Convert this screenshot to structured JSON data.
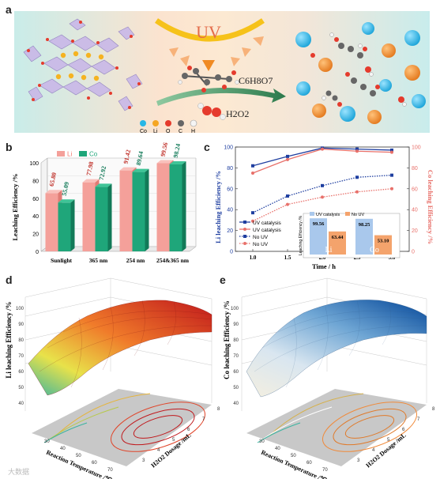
{
  "panels": {
    "a": "a",
    "b": "b",
    "c": "c",
    "d": "d",
    "e": "e"
  },
  "panel_a": {
    "uv_label": "UV",
    "reagent": "C6H8O7",
    "oxidant": "H2O2",
    "legend": [
      "Co",
      "Li",
      "O",
      "C",
      "H"
    ],
    "colors": {
      "Co": "#29b7e6",
      "Li": "#f5a623",
      "O": "#e53b2d",
      "C": "#666666",
      "H": "#eeeeee"
    }
  },
  "chart_data": [
    {
      "type": "bar",
      "panel": "b",
      "categories": [
        "Sunlight",
        "365 nm",
        "254 nm",
        "254&365 nm"
      ],
      "series": [
        {
          "name": "Li",
          "values": [
            65.8,
            77.98,
            91.42,
            99.56
          ],
          "color": "#f4a09a"
        },
        {
          "name": "Co",
          "values": [
            55.09,
            72.92,
            89.64,
            98.24
          ],
          "color": "#1fa67a"
        }
      ],
      "ylabel": "Leaching Efficiency /%",
      "ylim": [
        0,
        100
      ],
      "yticks": [
        "0",
        "20",
        "40",
        "60",
        "80",
        "100"
      ]
    },
    {
      "type": "line",
      "panel": "c",
      "x": [
        1.0,
        1.5,
        2.0,
        2.5,
        3.0
      ],
      "xticks": [
        "1.0",
        "1.5",
        "2.0",
        "2.5",
        "3.0"
      ],
      "xlabel": "Time / h",
      "ylabel_left": "Li leaching Efficiency /%",
      "ylabel_right": "Co leaching Efficiency /%",
      "ylim": [
        0,
        100
      ],
      "yticks": [
        "0",
        "20",
        "40",
        "60",
        "80",
        "100"
      ],
      "series": [
        {
          "name": "UV catalysis",
          "axis": "Li",
          "values": [
            82,
            91,
            99,
            98,
            97
          ],
          "color": "#1f3fa0",
          "style": "solid"
        },
        {
          "name": "UV catalysis",
          "axis": "Co",
          "values": [
            75,
            88,
            98,
            96,
            95
          ],
          "color": "#e8706a",
          "style": "solid"
        },
        {
          "name": "No UV",
          "axis": "Li",
          "values": [
            37,
            53,
            63,
            71,
            73
          ],
          "color": "#1f3fa0",
          "style": "dotted"
        },
        {
          "name": "No UV",
          "axis": "Co",
          "values": [
            29,
            45,
            52,
            57,
            60
          ],
          "color": "#e8706a",
          "style": "dotted"
        }
      ],
      "inset": {
        "legend": [
          "UV catalysis",
          "No UV"
        ],
        "ylabel": "Leaching Efficiency /%",
        "groups": [
          {
            "label": "Li",
            "values": [
              99.56,
              63.44
            ]
          },
          {
            "label": "Co",
            "values": [
              98.25,
              53.1
            ]
          }
        ],
        "colors": [
          "#a9c8ec",
          "#f4a36c"
        ]
      }
    }
  ],
  "panel_d": {
    "zlabel": "Li leaching Efficiency /%",
    "xlabel": "Reaction Temperature /℃",
    "ylabel": "H2O2 Dosage /mL",
    "zticks": [
      "40",
      "50",
      "60",
      "70",
      "80",
      "90",
      "100"
    ],
    "xticks": [
      "30",
      "40",
      "50",
      "60",
      "70"
    ],
    "yticks": [
      "3",
      "4",
      "5",
      "6",
      "7",
      "8"
    ]
  },
  "panel_e": {
    "zlabel": "Co leaching Efficiency /%",
    "xlabel": "Reaction Temperature /℃",
    "ylabel": "H2O2 Dosage /mL",
    "zticks": [
      "40",
      "50",
      "60",
      "70",
      "80",
      "90",
      "100"
    ],
    "xticks": [
      "30",
      "40",
      "50",
      "60",
      "70"
    ],
    "yticks": [
      "3",
      "4",
      "5",
      "6",
      "7",
      "8"
    ]
  },
  "watermark": "大数据"
}
